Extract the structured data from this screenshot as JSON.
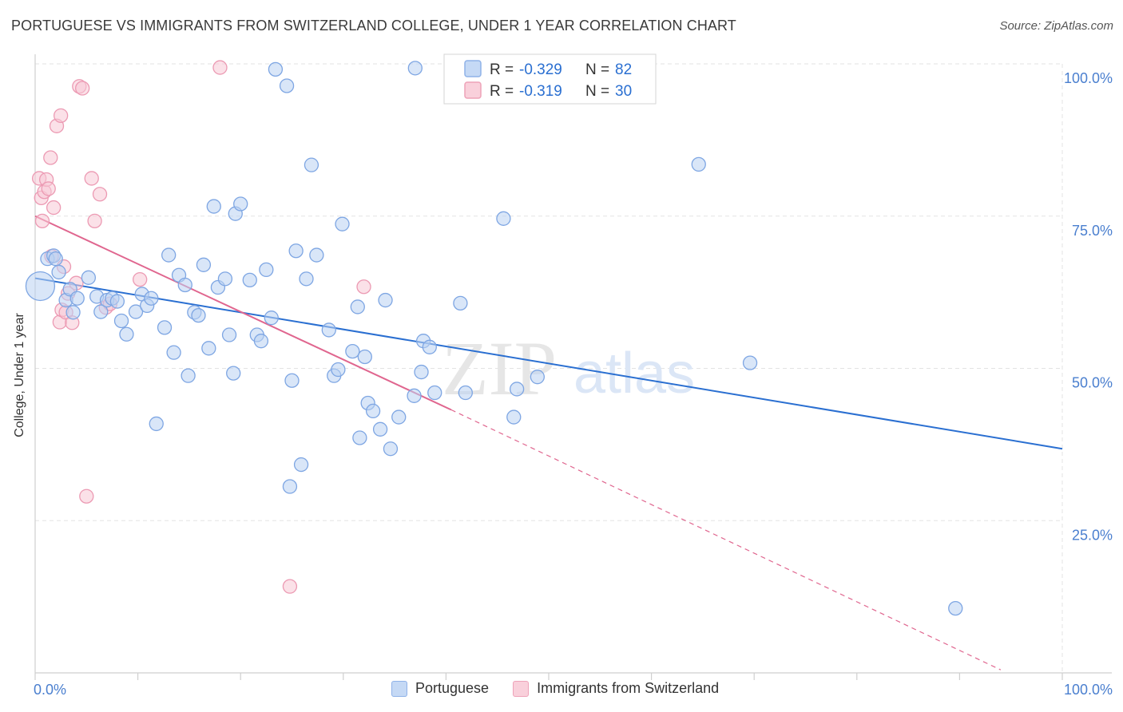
{
  "title": "PORTUGUESE VS IMMIGRANTS FROM SWITZERLAND COLLEGE, UNDER 1 YEAR CORRELATION CHART",
  "source": "Source: ZipAtlas.com",
  "watermark": {
    "zip": "ZIP",
    "atlas": "atlas"
  },
  "colors": {
    "blue_fill": "#b9d1f3",
    "blue_stroke": "#7ea6e3",
    "blue_line": "#2a6fd1",
    "pink_fill": "#f8c8d6",
    "pink_stroke": "#ec9ab3",
    "pink_line": "#e0668f",
    "axis_text": "#4a7fcf"
  },
  "stats_legend": [
    {
      "r_label": "R =",
      "r_value": "-0.329",
      "n_label": "N =",
      "n_value": "82"
    },
    {
      "r_label": "R =",
      "r_value": "-0.319",
      "n_label": "N =",
      "n_value": "30"
    }
  ],
  "chart_data": {
    "type": "scatter",
    "xlabel": "",
    "ylabel": "College, Under 1 year",
    "xlim": [
      0,
      100
    ],
    "ylim": [
      0,
      100
    ],
    "x_tick_labels": [
      "0.0%",
      "100.0%"
    ],
    "y_tick_labels": [
      "25.0%",
      "50.0%",
      "75.0%",
      "100.0%"
    ],
    "y_ticks": [
      25,
      50,
      75,
      100
    ],
    "grid": true,
    "legend_position": "bottom",
    "series": [
      {
        "name": "Portuguese",
        "trend": {
          "x0": 0,
          "y0": 64.8,
          "x1": 100,
          "y1": 36.8
        },
        "points": [
          [
            0.5,
            63.5
          ],
          [
            1.2,
            68
          ],
          [
            1.8,
            68.5
          ],
          [
            2.3,
            65.8
          ],
          [
            3.0,
            61.2
          ],
          [
            3.4,
            63.0
          ],
          [
            3.7,
            59.2
          ],
          [
            5.2,
            64.9
          ],
          [
            6.0,
            61.8
          ],
          [
            6.4,
            59.3
          ],
          [
            7.0,
            61.2
          ],
          [
            7.5,
            61.5
          ],
          [
            8.0,
            61.0
          ],
          [
            8.4,
            57.8
          ],
          [
            8.9,
            55.6
          ],
          [
            9.8,
            59.3
          ],
          [
            10.4,
            62.2
          ],
          [
            10.9,
            60.3
          ],
          [
            11.3,
            61.5
          ],
          [
            11.8,
            40.9
          ],
          [
            12.6,
            56.7
          ],
          [
            13.0,
            68.6
          ],
          [
            13.5,
            52.6
          ],
          [
            14.0,
            65.3
          ],
          [
            14.6,
            63.7
          ],
          [
            14.9,
            48.8
          ],
          [
            15.5,
            59.2
          ],
          [
            15.9,
            58.7
          ],
          [
            16.4,
            67.0
          ],
          [
            16.9,
            53.3
          ],
          [
            17.4,
            76.6
          ],
          [
            17.8,
            63.3
          ],
          [
            18.5,
            64.7
          ],
          [
            18.9,
            55.5
          ],
          [
            19.3,
            49.2
          ],
          [
            19.5,
            75.4
          ],
          [
            20.0,
            77.0
          ],
          [
            20.9,
            64.5
          ],
          [
            21.6,
            55.5
          ],
          [
            22.5,
            66.2
          ],
          [
            23.0,
            58.3
          ],
          [
            23.4,
            99.1
          ],
          [
            24.5,
            96.4
          ],
          [
            24.8,
            30.6
          ],
          [
            25.4,
            69.3
          ],
          [
            25.9,
            34.2
          ],
          [
            26.4,
            64.7
          ],
          [
            26.9,
            83.4
          ],
          [
            27.4,
            68.6
          ],
          [
            28.6,
            56.3
          ],
          [
            29.1,
            48.8
          ],
          [
            29.5,
            49.8
          ],
          [
            29.9,
            73.7
          ],
          [
            30.9,
            52.8
          ],
          [
            31.4,
            60.1
          ],
          [
            31.6,
            38.6
          ],
          [
            32.1,
            51.9
          ],
          [
            32.4,
            44.3
          ],
          [
            32.9,
            43.0
          ],
          [
            33.6,
            40.0
          ],
          [
            34.1,
            61.2
          ],
          [
            34.6,
            36.8
          ],
          [
            35.4,
            42.0
          ],
          [
            37.0,
            99.3
          ],
          [
            36.9,
            45.5
          ],
          [
            37.6,
            49.4
          ],
          [
            37.8,
            54.5
          ],
          [
            38.4,
            53.5
          ],
          [
            38.9,
            46.0
          ],
          [
            41.9,
            46.0
          ],
          [
            41.4,
            60.7
          ],
          [
            45.6,
            74.6
          ],
          [
            46.6,
            42.0
          ],
          [
            46.9,
            46.6
          ],
          [
            48.9,
            48.6
          ],
          [
            64.6,
            83.5
          ],
          [
            69.6,
            50.9
          ],
          [
            89.6,
            10.6
          ],
          [
            2.0,
            68.0
          ],
          [
            4.1,
            61.5
          ],
          [
            25.0,
            48.0
          ],
          [
            22.0,
            54.5
          ]
        ]
      },
      {
        "name": "Immigrants from Switzerland",
        "trend": {
          "x0": 0,
          "y0": 75.0,
          "x1": 40.5,
          "y1": 43.2
        },
        "trend_dashed_to": {
          "x": 94.0,
          "y": 0.5
        },
        "points": [
          [
            0.4,
            81.2
          ],
          [
            0.6,
            78.0
          ],
          [
            0.7,
            74.2
          ],
          [
            0.9,
            79.0
          ],
          [
            1.1,
            81.0
          ],
          [
            1.3,
            79.5
          ],
          [
            1.5,
            84.6
          ],
          [
            1.8,
            76.4
          ],
          [
            2.1,
            89.8
          ],
          [
            2.4,
            57.6
          ],
          [
            2.6,
            59.6
          ],
          [
            2.8,
            66.7
          ],
          [
            2.5,
            91.5
          ],
          [
            3.0,
            59.2
          ],
          [
            3.2,
            62.3
          ],
          [
            3.6,
            57.5
          ],
          [
            4.0,
            64.0
          ],
          [
            4.3,
            96.3
          ],
          [
            4.6,
            96.0
          ],
          [
            5.0,
            29.0
          ],
          [
            5.5,
            81.2
          ],
          [
            5.8,
            74.2
          ],
          [
            6.3,
            78.6
          ],
          [
            6.9,
            60.0
          ],
          [
            7.3,
            60.6
          ],
          [
            10.2,
            64.6
          ],
          [
            18.0,
            99.4
          ],
          [
            24.8,
            14.2
          ],
          [
            32.0,
            63.4
          ],
          [
            1.6,
            68.4
          ]
        ]
      }
    ]
  },
  "legend": {
    "portuguese": "Portuguese",
    "swiss": "Immigrants from Switzerland"
  }
}
